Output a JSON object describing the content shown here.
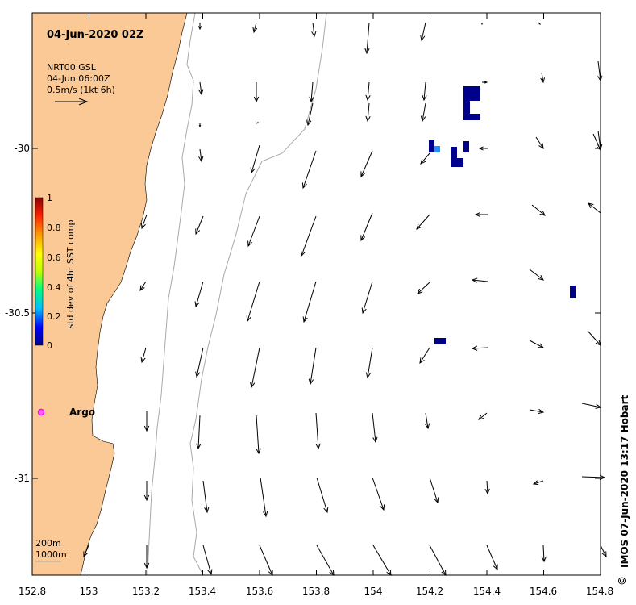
{
  "title": "04-Jun-2020 02Z",
  "legend": {
    "line1": "NRT00 GSL",
    "line2": "04-Jun 06:00Z",
    "line3": "0.5m/s (1kt 6h)"
  },
  "colorbar": {
    "label": "std dev of 4hr SST comp",
    "ticks": [
      "1",
      "0.8",
      "0.6",
      "0.4",
      "0.2",
      "0"
    ],
    "colors": [
      "#00008b",
      "#0000ff",
      "#00bfff",
      "#00ff7f",
      "#bfff00",
      "#ffff00",
      "#ff9900",
      "#ff2000",
      "#8b0000"
    ]
  },
  "axes": {
    "x_ticks": [
      "152.8",
      "153",
      "153.2",
      "153.4",
      "153.6",
      "153.8",
      "154",
      "154.2",
      "154.4",
      "154.6",
      "154.8"
    ],
    "y_ticks": [
      "-30",
      "-30.5",
      "-31"
    ]
  },
  "argo_label": "Argo",
  "contours_label": {
    "line1": "200m",
    "line2": "1000m"
  },
  "credit": "IMOS 07-Jun-2020 13:17 Hobart",
  "credit_symbol": "©",
  "colors": {
    "land": "#fbc996",
    "contour": "#a9a9a9",
    "argo": "#ff00ff",
    "sst": "#00008b"
  }
}
